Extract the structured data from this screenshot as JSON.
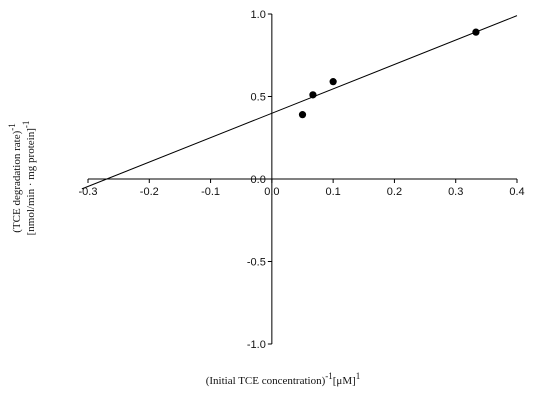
{
  "chart_data": {
    "type": "scatter",
    "title": "",
    "xlabel": {
      "text": "(Initial TCE concentration)",
      "sup1": "-1",
      "text2": "[μM]",
      "sup2": "1"
    },
    "ylabel": {
      "line1_text": "(TCE degradation rate)",
      "line1_sup": "-1",
      "line2_text": "[nmol/min · mg protein]",
      "line2_sup": "-1"
    },
    "xlim": [
      -0.3,
      0.4
    ],
    "ylim": [
      -1.0,
      1.0
    ],
    "x_ticks": [
      {
        "value": -0.3,
        "label": "-0.3"
      },
      {
        "value": -0.2,
        "label": "-0.2"
      },
      {
        "value": -0.1,
        "label": "-0.1"
      },
      {
        "value": 0.0,
        "label": "0.0"
      },
      {
        "value": 0.1,
        "label": "0.1"
      },
      {
        "value": 0.2,
        "label": "0.2"
      },
      {
        "value": 0.3,
        "label": "0.3"
      },
      {
        "value": 0.4,
        "label": "0.4"
      }
    ],
    "y_ticks": [
      {
        "value": 1.0,
        "label": "1.0"
      },
      {
        "value": 0.5,
        "label": "0.5"
      },
      {
        "value": 0.0,
        "label": "0.0"
      },
      {
        "value": -0.5,
        "label": "-0.5"
      },
      {
        "value": -1.0,
        "label": "-1.0"
      }
    ],
    "series": [
      {
        "points": [
          {
            "x": 0.05,
            "y": 0.39
          },
          {
            "x": 0.067,
            "y": 0.51
          },
          {
            "x": 0.1,
            "y": 0.59
          },
          {
            "x": 0.333,
            "y": 0.89
          }
        ],
        "color": "#000000"
      }
    ],
    "fit_line": {
      "x_start": -0.31,
      "y_start": -0.06,
      "x_end": 0.4,
      "y_end": 0.99,
      "color": "#000000"
    },
    "grid": false,
    "legend": "none"
  }
}
